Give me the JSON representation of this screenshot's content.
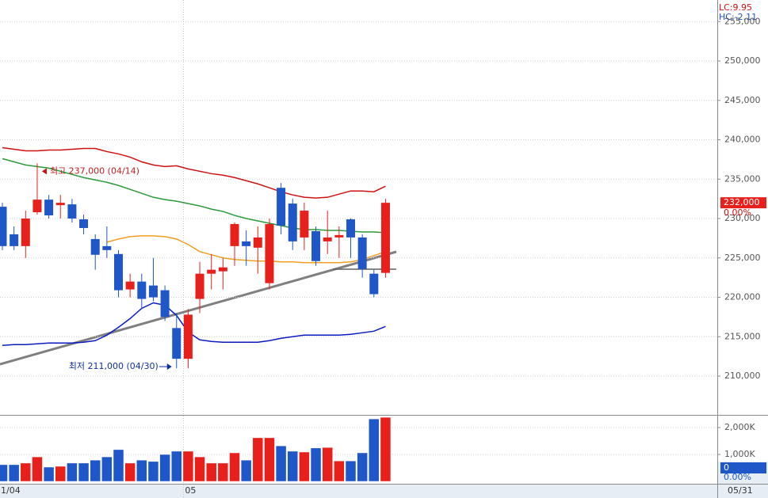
{
  "chart_data": {
    "type": "candlestick",
    "categories": [
      "1/04",
      null,
      null,
      null,
      null,
      null,
      null,
      null,
      null,
      null,
      null,
      null,
      null,
      null,
      null,
      null,
      "05",
      null,
      null,
      null,
      null,
      null,
      null,
      null,
      null,
      null,
      null,
      null,
      null,
      null,
      null,
      null,
      null,
      null
    ],
    "right_date_label": "05/31",
    "open": [
      231500,
      228000,
      226500,
      230800,
      232400,
      231700,
      231800,
      229900,
      227400,
      226500,
      225500,
      221000,
      222000,
      221500,
      220900,
      216100,
      212200,
      219800,
      223000,
      223300,
      226500,
      227100,
      226300,
      221800,
      233900,
      231900,
      227600,
      228400,
      227100,
      227600,
      229900,
      227600,
      223000,
      223100
    ],
    "high": [
      232000,
      229000,
      231000,
      237000,
      233000,
      233000,
      232500,
      230500,
      228000,
      229000,
      226000,
      223000,
      223000,
      225000,
      221500,
      218000,
      218500,
      224500,
      225500,
      225000,
      229500,
      228500,
      229000,
      230000,
      234500,
      232500,
      232000,
      229000,
      231000,
      229000,
      230000,
      228000,
      223500,
      232500
    ],
    "low": [
      226000,
      226000,
      225000,
      230500,
      230000,
      230000,
      229500,
      228000,
      223500,
      225000,
      220000,
      220000,
      218500,
      219500,
      217000,
      211000,
      211000,
      218000,
      221000,
      221000,
      224000,
      224000,
      223000,
      221000,
      228000,
      226000,
      226000,
      224000,
      225500,
      225000,
      225000,
      222500,
      220000,
      222500
    ],
    "close": [
      226500,
      226500,
      230000,
      232400,
      230400,
      232000,
      230000,
      228800,
      225400,
      226000,
      220900,
      222000,
      219800,
      220000,
      217500,
      212200,
      217800,
      223000,
      223500,
      223800,
      229300,
      226500,
      227600,
      229300,
      229100,
      227100,
      231000,
      224600,
      227600,
      227900,
      227600,
      223600,
      220400,
      232000
    ],
    "up_color": "#e8201c",
    "down_color": "#1f56c8",
    "series": [
      {
        "color": "#d01010",
        "values": [
          239000,
          238800,
          238600,
          238600,
          238700,
          238700,
          238800,
          238900,
          238900,
          238500,
          238200,
          237800,
          237200,
          236800,
          236600,
          236700,
          236300,
          236000,
          235700,
          235500,
          235200,
          234800,
          234400,
          233900,
          233400,
          233000,
          232700,
          232600,
          232700,
          233100,
          233500,
          233500,
          233400,
          234100
        ]
      },
      {
        "color": "#0a1cc0",
        "values": [
          213900,
          214000,
          214000,
          214100,
          214200,
          214200,
          214200,
          214300,
          214500,
          215200,
          216200,
          217300,
          218600,
          219300,
          219000,
          217700,
          215600,
          214600,
          214400,
          214300,
          214300,
          214300,
          214300,
          214500,
          214800,
          215000,
          215200,
          215200,
          215200,
          215200,
          215300,
          215500,
          215700,
          216300
        ]
      },
      {
        "color": "#2a9a3a",
        "values": [
          237600,
          237200,
          236800,
          236600,
          236400,
          236000,
          235600,
          235200,
          234900,
          234600,
          234200,
          233700,
          233200,
          232700,
          232400,
          232200,
          231900,
          231600,
          231200,
          230900,
          230400,
          230000,
          229700,
          229400,
          229100,
          228800,
          228600,
          228600,
          228500,
          228500,
          228400,
          228300,
          228300,
          228200
        ]
      },
      {
        "color": "#f0a020",
        "values": [
          null,
          null,
          null,
          null,
          null,
          null,
          null,
          null,
          null,
          227000,
          227400,
          227700,
          227800,
          227800,
          227700,
          227400,
          226700,
          225800,
          225400,
          225000,
          224800,
          224700,
          224600,
          224600,
          224500,
          224500,
          224400,
          224400,
          224400,
          224400,
          224500,
          224800,
          225300,
          225800
        ]
      }
    ],
    "ylim": [
      205180,
      257740
    ],
    "yticks": [
      {
        "value": 210000,
        "label": "210,000"
      },
      {
        "value": 215000,
        "label": "215,000"
      },
      {
        "value": 220000,
        "label": "220,000"
      },
      {
        "value": 225000,
        "label": "225,000"
      },
      {
        "value": 230000,
        "label": "230,000"
      },
      {
        "value": 235000,
        "label": "235,000"
      },
      {
        "value": 240000,
        "label": "240,000"
      },
      {
        "value": 245000,
        "label": "245,000"
      },
      {
        "value": 250000,
        "label": "250,000"
      },
      {
        "value": 255000,
        "label": "255,000"
      }
    ],
    "grid": true,
    "indicator_labels": [
      "LC:9.95",
      "HC:-2.11"
    ],
    "price_tag": {
      "value": 232000,
      "label": "232,000"
    },
    "price_change": "0.00%",
    "high_annotation": {
      "value": 237000,
      "label": "최고 237,000 (04/14)"
    },
    "low_annotation": {
      "value": 211000,
      "label": "최저 211,000 (04/30)"
    },
    "volume": {
      "values": [
        620,
        620,
        680,
        910,
        530,
        560,
        680,
        680,
        790,
        910,
        1180,
        680,
        790,
        740,
        1000,
        1120,
        1120,
        910,
        680,
        680,
        1060,
        790,
        1620,
        1620,
        1320,
        1120,
        1090,
        1240,
        1260,
        760,
        760,
        1060,
        2320,
        2380
      ],
      "ylim": [
        -88,
        2441
      ],
      "yticks": [
        {
          "value": 1000,
          "label": "1,000K"
        },
        {
          "value": 2000,
          "label": "2,000K"
        }
      ],
      "tag": "0",
      "change": "0.00%"
    }
  }
}
